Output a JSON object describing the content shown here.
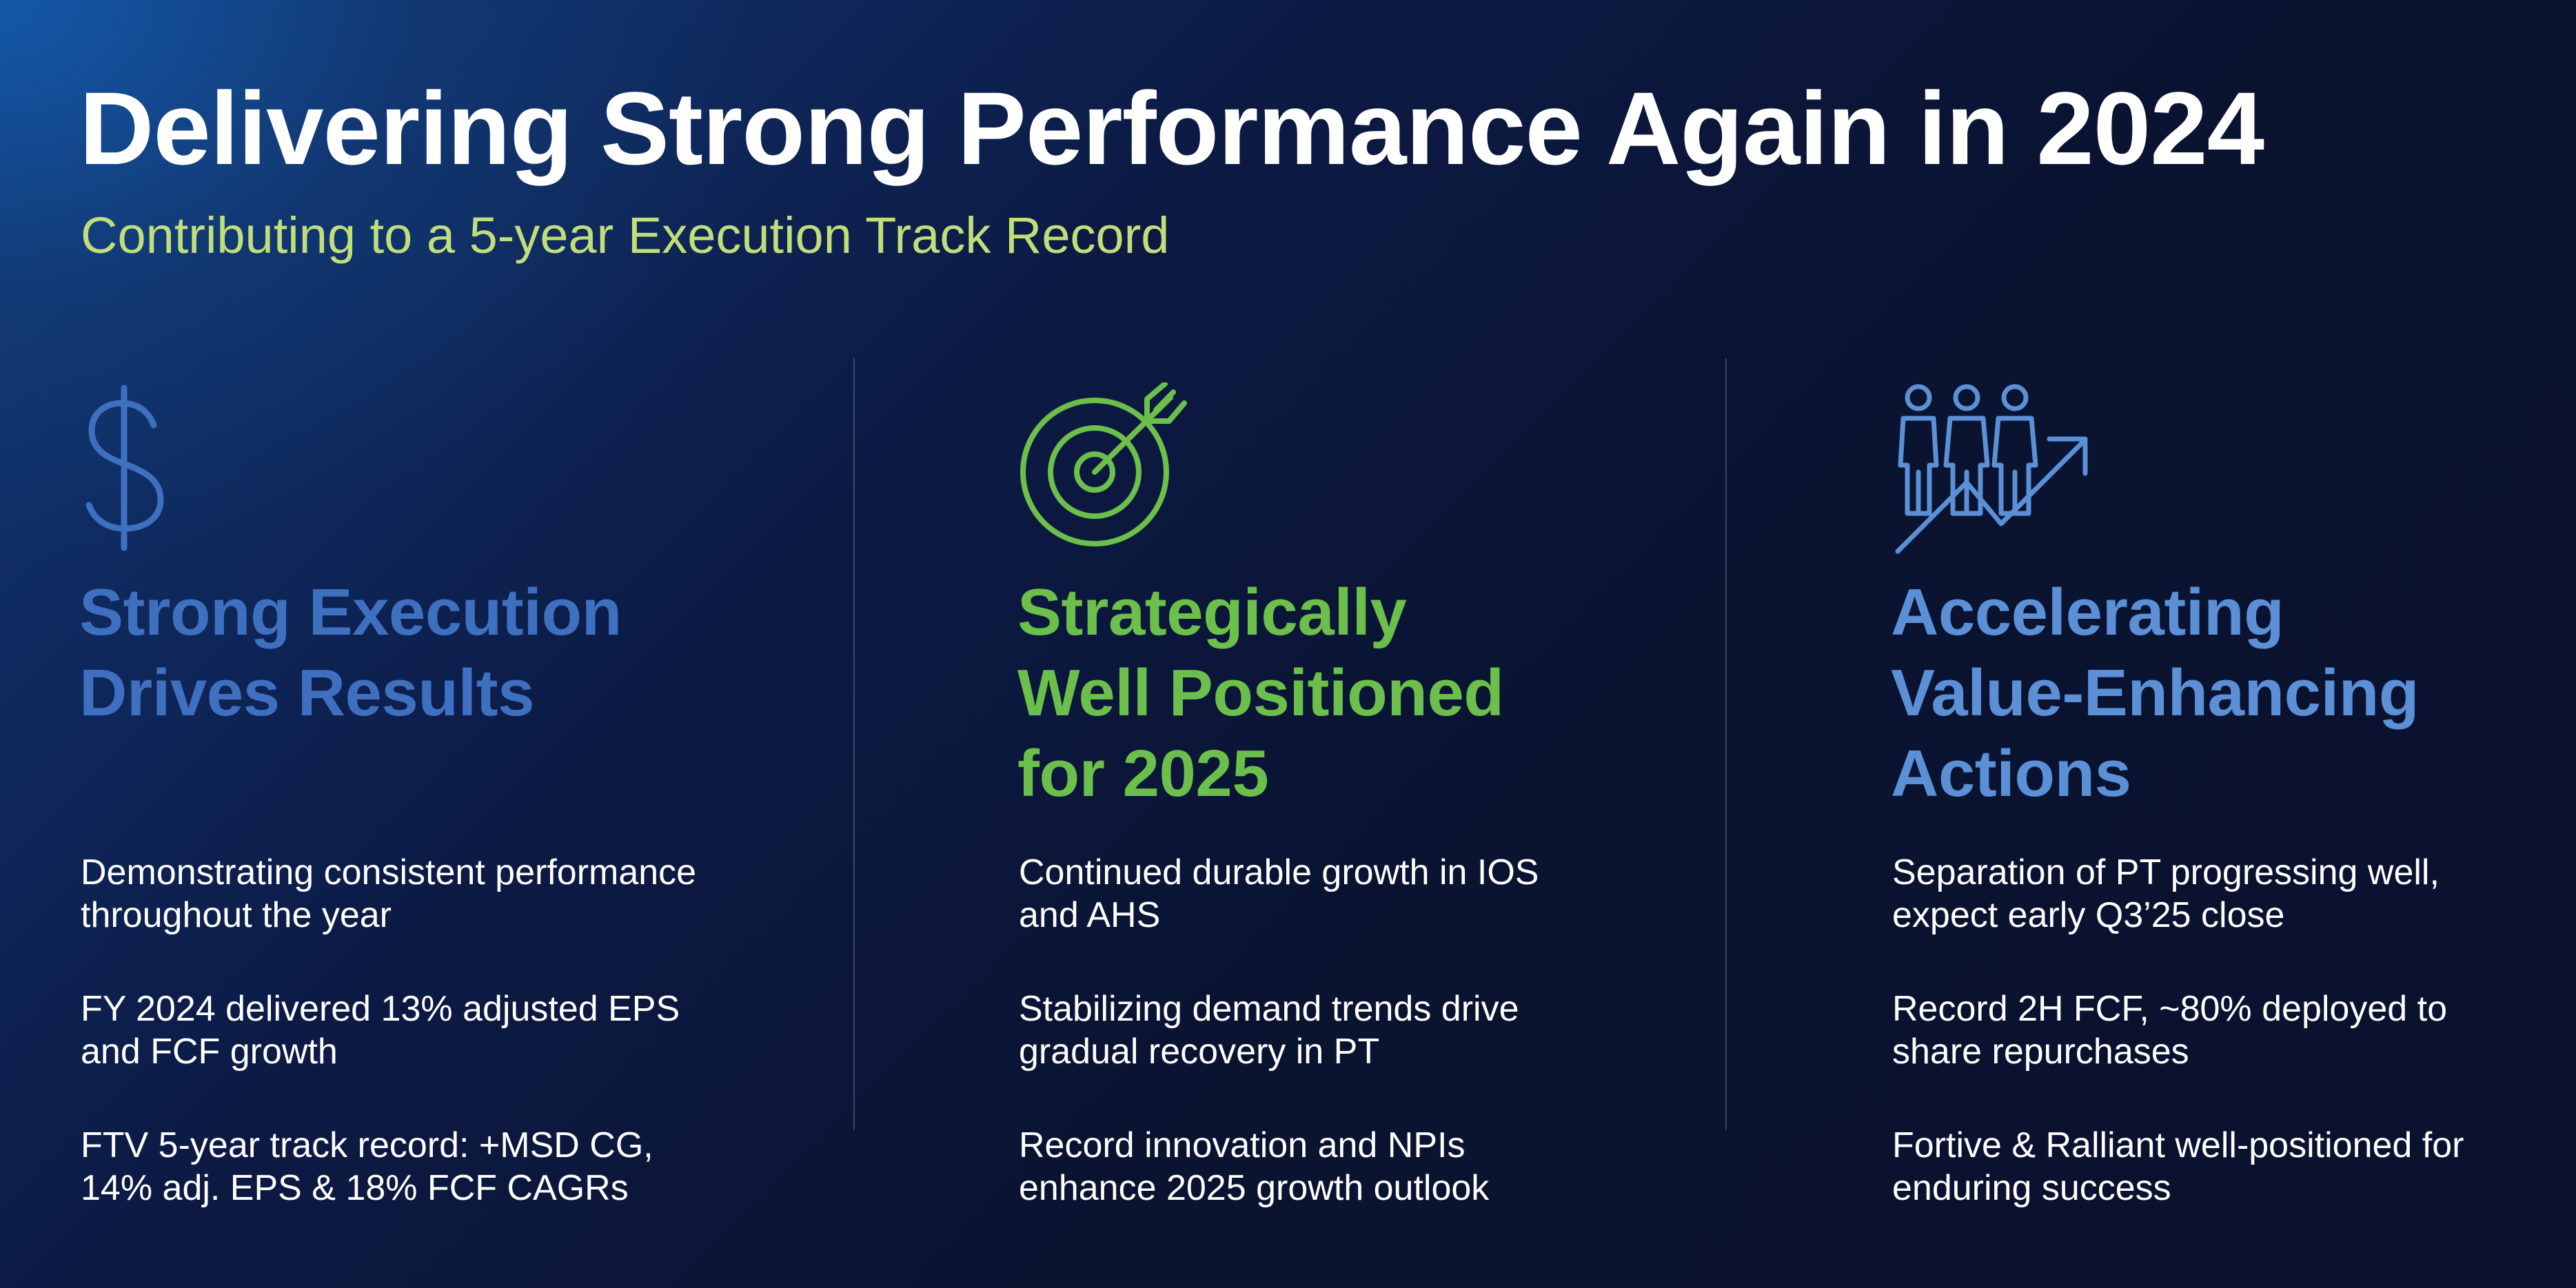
{
  "title": "Delivering Strong Performance Again in 2024",
  "subtitle": "Contributing to a 5-year Execution Track Record",
  "colors": {
    "subtitle": "#c2de7a",
    "col1_accent": "#3f70c0",
    "col2_accent": "#6cbf4a",
    "col3_accent": "#5b8fd6"
  },
  "columns": [
    {
      "icon": "dollar-sign-icon",
      "heading": [
        "Strong Execution",
        "Drives Results"
      ],
      "bullets": [
        [
          "Demonstrating consistent performance",
          "throughout the year"
        ],
        [
          "FY 2024 delivered 13% adjusted EPS",
          "and FCF growth"
        ],
        [
          "FTV 5-year track record: +MSD CG,",
          "14% adj. EPS & 18% FCF CAGRs"
        ]
      ]
    },
    {
      "icon": "target-arrow-icon",
      "heading": [
        "Strategically",
        "Well Positioned",
        "for 2025"
      ],
      "bullets": [
        [
          "Continued durable growth in IOS",
          "and AHS"
        ],
        [
          "Stabilizing demand trends drive",
          "gradual recovery in PT"
        ],
        [
          "Record innovation and NPIs",
          "enhance 2025 growth outlook"
        ]
      ]
    },
    {
      "icon": "people-growth-arrow-icon",
      "heading": [
        "Accelerating",
        "Value-Enhancing",
        "Actions"
      ],
      "bullets": [
        [
          "Separation of PT progressing well,",
          "expect early Q3’25 close"
        ],
        [
          "Record 2H FCF, ~80% deployed to",
          "share repurchases"
        ],
        [
          "Fortive & Ralliant well-positioned for",
          "enduring success"
        ]
      ]
    }
  ]
}
